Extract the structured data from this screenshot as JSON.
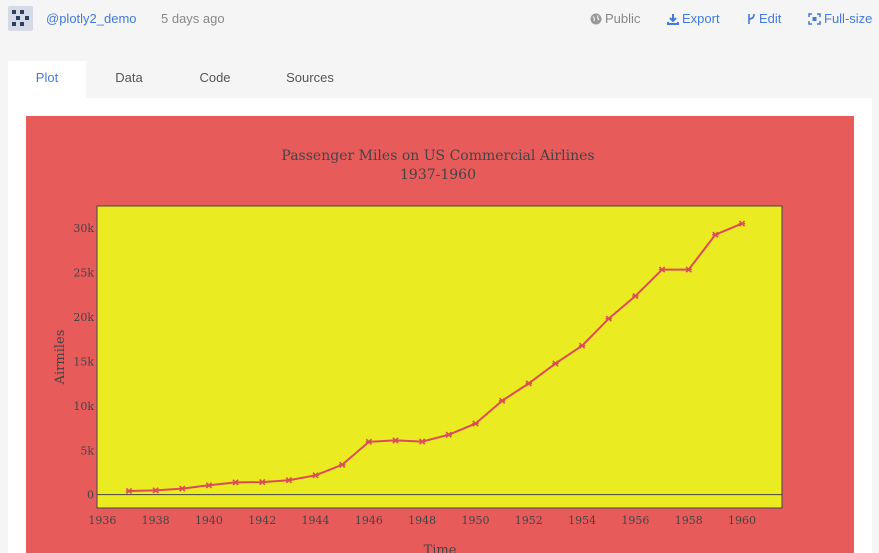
{
  "header": {
    "username": "@plotly2_demo",
    "time_ago": "5 days ago",
    "public_label": "Public",
    "export_label": "Export",
    "edit_label": "Edit",
    "fullsize_label": "Full-size"
  },
  "tabs": [
    {
      "label": "Plot"
    },
    {
      "label": "Data"
    },
    {
      "label": "Code"
    },
    {
      "label": "Sources"
    }
  ],
  "colors": {
    "paper_bg": "#e85b5b",
    "plot_bg": "#ebeb21",
    "line": "#dc4b5a",
    "text": "#444444",
    "link": "#447adb"
  },
  "chart_data": {
    "type": "line",
    "title": "Passenger Miles on US Commercial Airlines",
    "subtitle": "1937-1960",
    "xlabel": "Time",
    "ylabel": "Airmiles",
    "xlim": [
      1935.8,
      1961.5
    ],
    "ylim": [
      -1500,
      32500
    ],
    "x_ticks": [
      "1936",
      "1938",
      "1940",
      "1942",
      "1944",
      "1946",
      "1948",
      "1950",
      "1952",
      "1954",
      "1956",
      "1958",
      "1960"
    ],
    "y_ticks": [
      "0",
      "5k",
      "10k",
      "15k",
      "20k",
      "25k",
      "30k"
    ],
    "grid": false,
    "legend": false,
    "series": [
      {
        "x": [
          1937,
          1938,
          1939,
          1940,
          1941,
          1942,
          1943,
          1944,
          1945,
          1946,
          1947,
          1948,
          1949,
          1950,
          1951,
          1952,
          1953,
          1954,
          1955,
          1956,
          1957,
          1958,
          1959,
          1960
        ],
        "values": [
          412,
          480,
          683,
          1052,
          1385,
          1418,
          1634,
          2178,
          3362,
          5948,
          6109,
          5981,
          6753,
          8003,
          10566,
          12528,
          14760,
          16769,
          19819,
          22362,
          25340,
          25343,
          29269,
          30514
        ]
      }
    ]
  }
}
